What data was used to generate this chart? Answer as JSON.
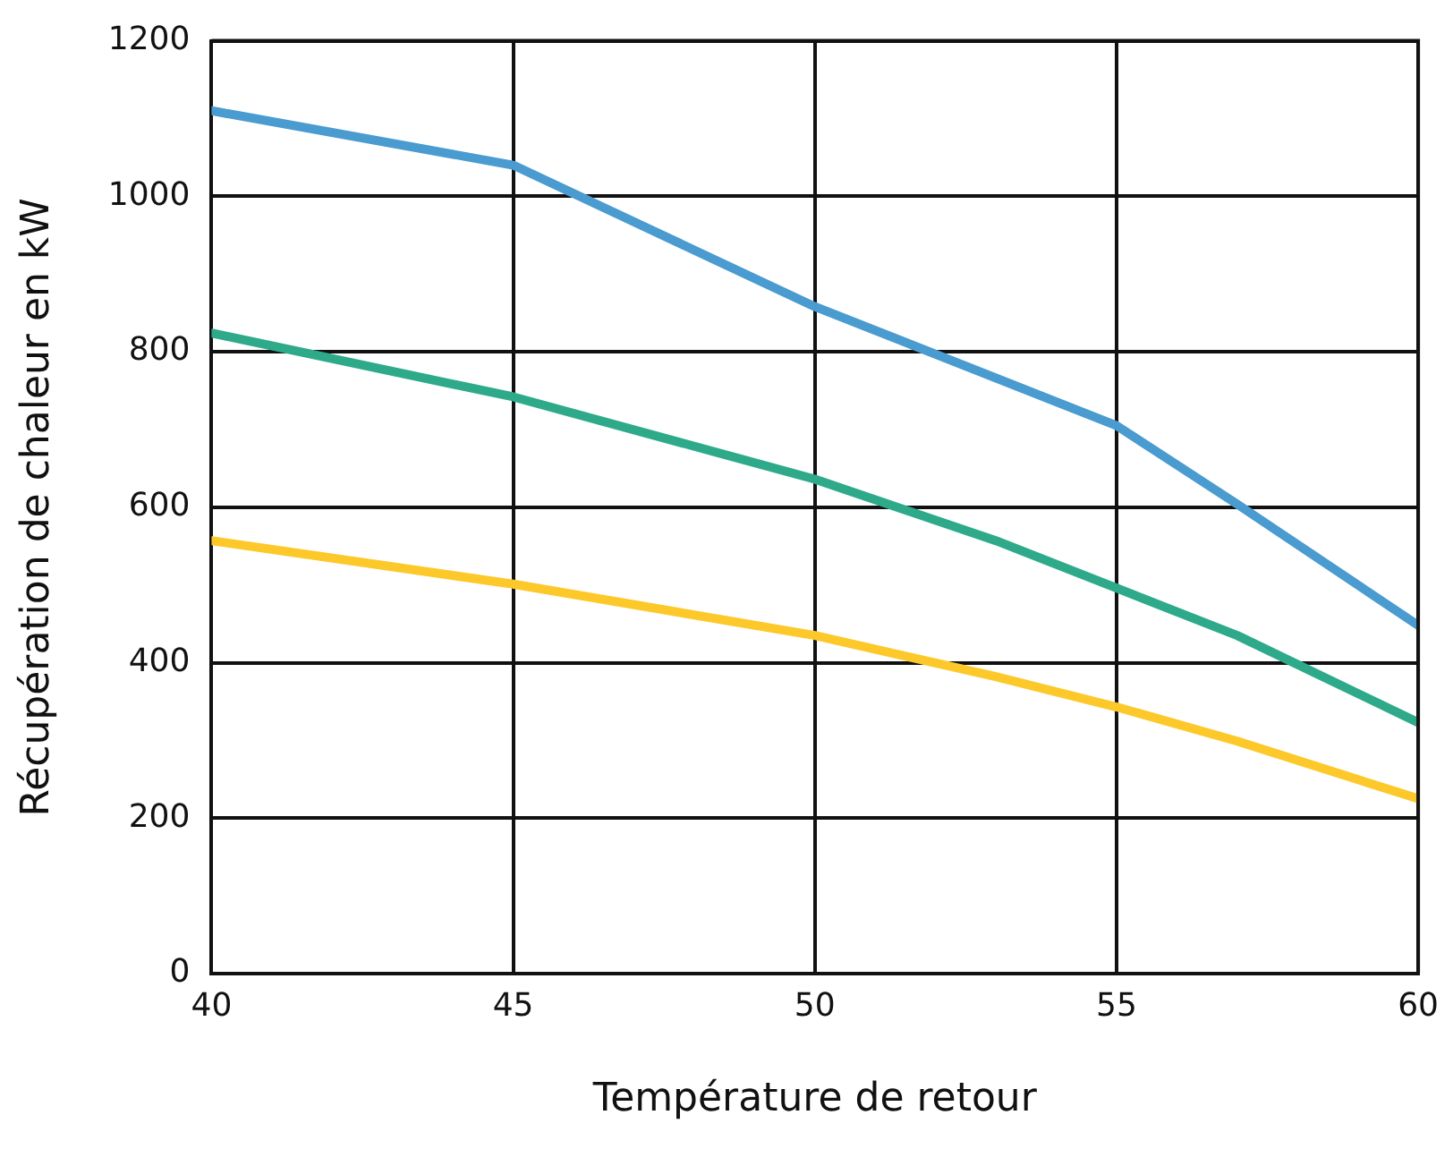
{
  "chart_data": {
    "type": "line",
    "xlabel": "Température de retour",
    "ylabel": "Récupération de chaleur en kW",
    "xlim": [
      40,
      60
    ],
    "xticks": [
      40,
      45,
      50,
      55,
      60
    ],
    "ylim": [
      0,
      1200
    ],
    "yticks": [
      0,
      200,
      400,
      600,
      800,
      1000,
      1200
    ],
    "grid": true,
    "legend": false,
    "marker": "none",
    "line_style": "solid",
    "series": [
      {
        "color": "#4a9bd0",
        "x": [
          40,
          45,
          50,
          55,
          57,
          60
        ],
        "values": [
          1110,
          1040,
          858,
          705,
          604,
          448
        ]
      },
      {
        "color": "#2eaa8a",
        "x": [
          40,
          45,
          50,
          53,
          55,
          57,
          60
        ],
        "values": [
          824,
          742,
          636,
          557,
          496,
          435,
          323
        ]
      },
      {
        "color": "#fdc82a",
        "x": [
          40,
          45,
          50,
          53,
          55,
          57,
          60
        ],
        "values": [
          557,
          501,
          435,
          382,
          343,
          299,
          225
        ]
      }
    ]
  }
}
